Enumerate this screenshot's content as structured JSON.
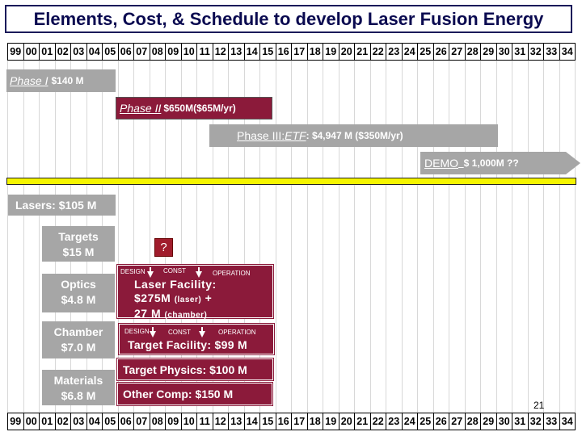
{
  "title": "Elements, Cost, & Schedule to develop Laser Fusion Energy",
  "years": [
    "99",
    "00",
    "01",
    "02",
    "03",
    "04",
    "05",
    "06",
    "07",
    "08",
    "09",
    "10",
    "11",
    "12",
    "13",
    "14",
    "15",
    "16",
    "17",
    "18",
    "19",
    "20",
    "21",
    "22",
    "23",
    "24",
    "25",
    "26",
    "27",
    "28",
    "29",
    "30",
    "31",
    "32",
    "33",
    "34"
  ],
  "phases": {
    "phase1": {
      "name": "Phase I",
      "cost": "$140 M"
    },
    "phase2": {
      "name": "Phase II",
      "cost": "$650M($65M/yr)"
    },
    "phase3": {
      "name": "Phase III: ",
      "etf": "ETF",
      "cost": ": $4,947 M ($350M/yr)"
    },
    "demo": {
      "name": "DEMO",
      "cost": " $ 1,000M ??"
    }
  },
  "elements": {
    "lasers": "Lasers: $105 M",
    "targets": {
      "label": "Targets",
      "cost": "$15 M"
    },
    "optics": {
      "label": "Optics",
      "cost": "$4.8 M"
    },
    "chamber": {
      "label": "Chamber",
      "cost": "$7.0 M"
    },
    "materials": {
      "label": "Materials",
      "cost": "$6.8 M"
    }
  },
  "question_mark": "?",
  "laser_facility": {
    "design": "DESIGN",
    "const": "CONST",
    "operation": "OPERATION",
    "line1": "Laser Facility:",
    "line2": "$275M",
    "line2_small": "(laser)",
    "line2_tail": " +",
    "line3": "27 M",
    "line3_small": "(chamber)"
  },
  "target_facility": {
    "design": "DESIGN",
    "const": "CONST",
    "operation": "OPERATION",
    "label": "Target Facility: $99 M"
  },
  "target_physics": "Target Physics: $100 M",
  "other_comp": "Other Comp: $150 M",
  "page_number": "21",
  "colors": {
    "grey": "#a6a6a6",
    "dark_red": "#8b1a3a",
    "yellow": "#f5f500",
    "title_navy": "#0a0a50"
  }
}
